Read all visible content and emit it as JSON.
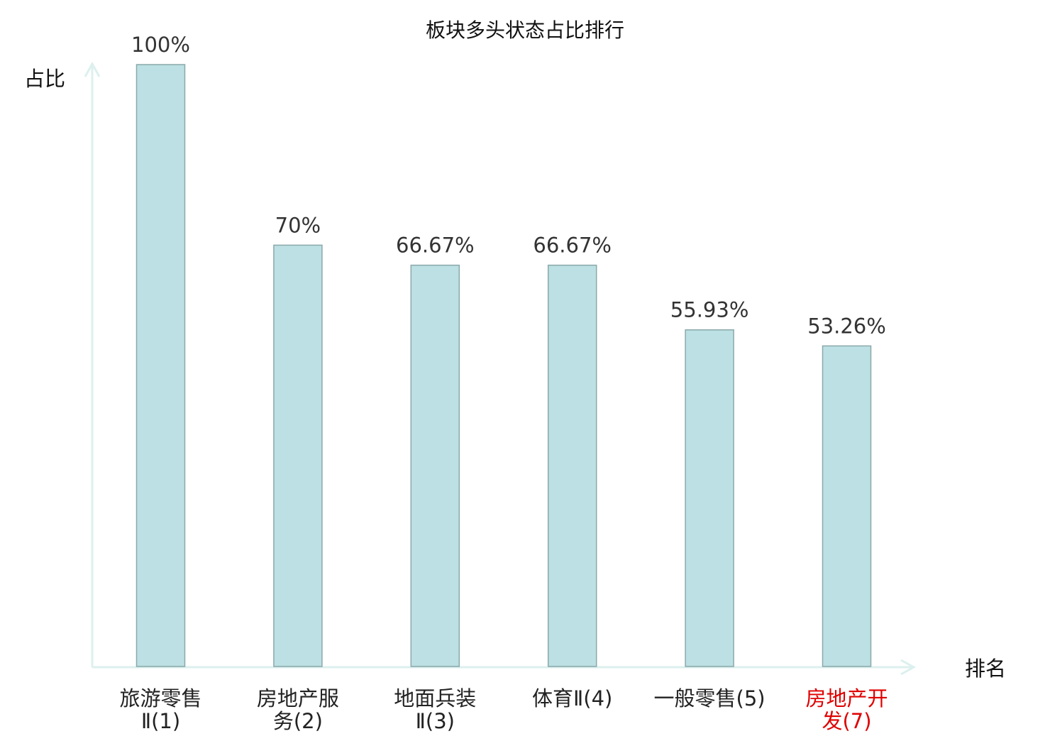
{
  "chart_data": {
    "type": "bar",
    "title": "板块多头状态占比排行",
    "ylabel": "占比",
    "xlabel": "排名",
    "categories": [
      "旅游零售Ⅱ(1)",
      "房地产服务(2)",
      "地面兵装Ⅱ(3)",
      "体育Ⅱ(4)",
      "一般零售(5)",
      "房地产开发(7)"
    ],
    "values": [
      100,
      70,
      66.67,
      66.67,
      55.93,
      53.26
    ],
    "data_labels": [
      "100%",
      "70%",
      "66.67%",
      "66.67%",
      "55.93%",
      "53.26%"
    ],
    "highlight_index": 5,
    "ylim": [
      0,
      100
    ],
    "grid": false,
    "colors": {
      "bar_fill": "#bce0e3",
      "bar_stroke": "#8aa9aa",
      "axis": "#dcf0ee",
      "highlight_label": "#e00000",
      "text": "#222222"
    }
  }
}
